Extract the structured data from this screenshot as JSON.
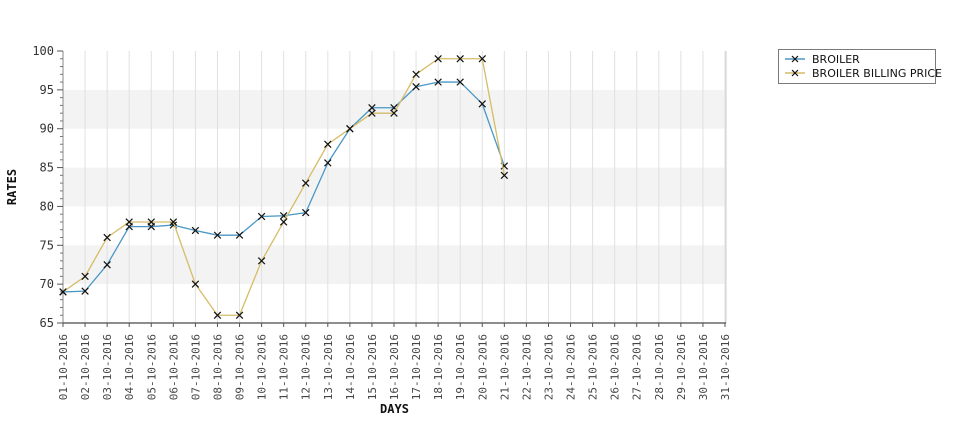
{
  "chart_data": {
    "type": "line",
    "title": "",
    "xlabel": "DAYS",
    "ylabel": "RATES",
    "ylim": [
      65,
      100
    ],
    "y_ticks": [
      65,
      70,
      75,
      80,
      85,
      90,
      95,
      100
    ],
    "y_minor_step": 1,
    "grid": true,
    "band_ranges": [
      [
        70,
        75
      ],
      [
        80,
        85
      ],
      [
        90,
        95
      ]
    ],
    "band_color": "#f3f3f3",
    "gridline_color": "#e0e0e0",
    "marker_color": "#111111",
    "marker_shape": "x",
    "legend_position": "top-right",
    "categories": [
      "01-10-2016",
      "02-10-2016",
      "03-10-2016",
      "04-10-2016",
      "05-10-2016",
      "06-10-2016",
      "07-10-2016",
      "08-10-2016",
      "09-10-2016",
      "10-10-2016",
      "11-10-2016",
      "12-10-2016",
      "13-10-2016",
      "14-10-2016",
      "15-10-2016",
      "16-10-2016",
      "17-10-2016",
      "18-10-2016",
      "19-10-2016",
      "20-10-2016",
      "21-10-2016",
      "22-10-2016",
      "23-10-2016",
      "24-10-2016",
      "25-10-2016",
      "26-10-2016",
      "27-10-2016",
      "28-10-2016",
      "29-10-2016",
      "30-10-2016",
      "31-10-2016"
    ],
    "series": [
      {
        "name": "BROILER",
        "color": "#4a97c6",
        "marker": "x",
        "values": [
          69,
          69.1,
          72.5,
          77.4,
          77.4,
          77.6,
          76.9,
          76.3,
          76.3,
          78.7,
          78.8,
          79.2,
          85.6,
          90,
          92.7,
          92.7,
          95.4,
          96,
          96,
          93.2,
          85.2
        ]
      },
      {
        "name": "BROILER BILLING PRICE",
        "color": "#d5bc67",
        "marker": "x",
        "values": [
          69,
          71,
          76,
          78,
          78,
          78,
          70,
          66,
          66,
          73,
          78,
          83,
          88,
          90,
          92,
          92,
          97,
          99,
          99,
          99,
          84
        ]
      }
    ]
  }
}
